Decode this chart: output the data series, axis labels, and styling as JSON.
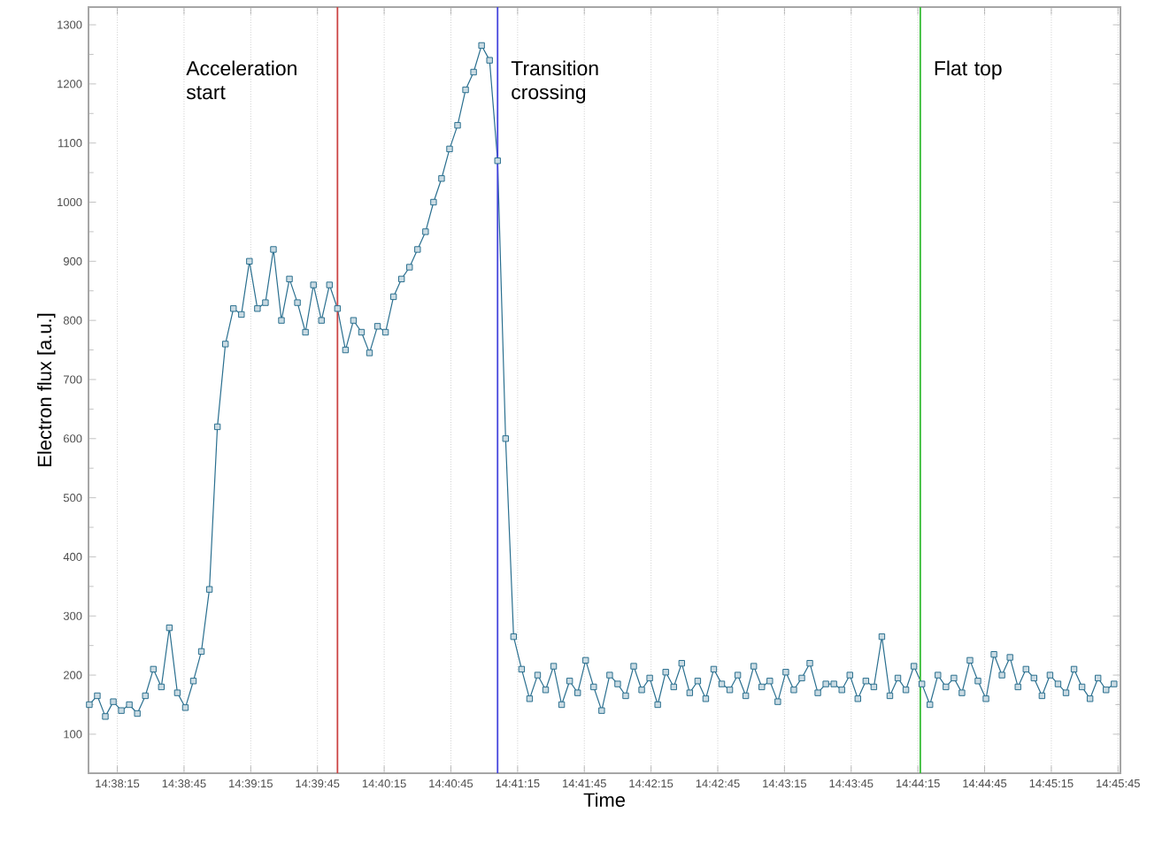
{
  "chart_data": {
    "type": "line",
    "xlabel": "Time",
    "ylabel": "Electron flux [a.u.]",
    "xlim": [
      14.6339,
      14.7628
    ],
    "ylim": [
      34,
      1330
    ],
    "xticks": [
      {
        "value": 14.6375,
        "label": "14:38:15"
      },
      {
        "value": 14.645833,
        "label": "14:38:45"
      },
      {
        "value": 14.654167,
        "label": "14:39:15"
      },
      {
        "value": 14.6625,
        "label": "14:39:45"
      },
      {
        "value": 14.670833,
        "label": "14:40:15"
      },
      {
        "value": 14.679167,
        "label": "14:40:45"
      },
      {
        "value": 14.6875,
        "label": "14:41:15"
      },
      {
        "value": 14.695833,
        "label": "14:41:45"
      },
      {
        "value": 14.704167,
        "label": "14:42:15"
      },
      {
        "value": 14.7125,
        "label": "14:42:45"
      },
      {
        "value": 14.720833,
        "label": "14:43:15"
      },
      {
        "value": 14.729167,
        "label": "14:43:45"
      },
      {
        "value": 14.7375,
        "label": "14:44:15"
      },
      {
        "value": 14.745833,
        "label": "14:44:45"
      },
      {
        "value": 14.754167,
        "label": "14:45:15"
      },
      {
        "value": 14.7625,
        "label": "14:45:45"
      }
    ],
    "yticks": [
      100,
      200,
      300,
      400,
      500,
      600,
      700,
      800,
      900,
      1000,
      1100,
      1200,
      1300
    ],
    "grid": "x",
    "marker": "square",
    "line_style": "solid",
    "x": [
      14.634,
      14.635,
      14.636,
      14.637,
      14.638,
      14.639,
      14.64,
      14.641,
      14.642,
      14.643,
      14.644,
      14.645,
      14.646,
      14.647,
      14.648,
      14.649,
      14.65,
      14.651,
      14.652,
      14.653,
      14.654,
      14.655,
      14.656,
      14.657,
      14.658,
      14.659,
      14.66,
      14.661,
      14.662,
      14.663,
      14.664,
      14.665,
      14.666,
      14.667,
      14.668,
      14.669,
      14.67,
      14.671,
      14.672,
      14.673,
      14.674,
      14.675,
      14.676,
      14.677,
      14.678,
      14.679,
      14.68,
      14.681,
      14.682,
      14.683,
      14.684,
      14.685,
      14.686,
      14.687,
      14.688,
      14.689,
      14.69,
      14.691,
      14.692,
      14.693,
      14.694,
      14.695,
      14.696,
      14.697,
      14.698,
      14.699,
      14.7,
      14.701,
      14.702,
      14.703,
      14.704,
      14.705,
      14.706,
      14.707,
      14.708,
      14.709,
      14.71,
      14.711,
      14.712,
      14.713,
      14.714,
      14.715,
      14.716,
      14.717,
      14.718,
      14.719,
      14.72,
      14.721,
      14.722,
      14.723,
      14.724,
      14.725,
      14.726,
      14.727,
      14.728,
      14.729,
      14.73,
      14.731,
      14.732,
      14.733,
      14.734,
      14.735,
      14.736,
      14.737,
      14.738,
      14.739,
      14.74,
      14.741,
      14.742,
      14.743,
      14.744,
      14.745,
      14.746,
      14.747,
      14.748,
      14.749,
      14.75,
      14.751,
      14.752,
      14.753,
      14.754,
      14.755,
      14.756,
      14.757,
      14.758,
      14.759,
      14.76,
      14.761,
      14.762
    ],
    "series": [
      {
        "color": "#2a6f8f",
        "values": [
          150,
          165,
          130,
          155,
          140,
          150,
          135,
          165,
          210,
          180,
          280,
          170,
          145,
          190,
          240,
          345,
          620,
          760,
          820,
          810,
          900,
          820,
          830,
          920,
          800,
          870,
          830,
          780,
          860,
          800,
          860,
          820,
          750,
          800,
          780,
          745,
          790,
          780,
          840,
          870,
          890,
          920,
          950,
          1000,
          1040,
          1090,
          1130,
          1190,
          1220,
          1265,
          1240,
          1070,
          600,
          265,
          210,
          160,
          200,
          175,
          215,
          150,
          190,
          170,
          225,
          180,
          140,
          200,
          185,
          165,
          215,
          175,
          195,
          150,
          205,
          180,
          220,
          170,
          190,
          160,
          210,
          185,
          175,
          200,
          165,
          215,
          180,
          190,
          155,
          205,
          175,
          195,
          220,
          170,
          185,
          185,
          175,
          200,
          160,
          190,
          180,
          265,
          165,
          195,
          175,
          215,
          185,
          150,
          200,
          180,
          195,
          170,
          225,
          190,
          160,
          235,
          200,
          230,
          180,
          210,
          195,
          165,
          200,
          185,
          170,
          210,
          180,
          160,
          195,
          175,
          185
        ]
      }
    ],
    "ref_lines": [
      {
        "axis": "x",
        "value": 14.665,
        "label": "Acceleration start",
        "color": "#cc4444"
      },
      {
        "axis": "x",
        "value": 14.685,
        "label": "Transition crossing",
        "color": "#4444dd"
      },
      {
        "axis": "x",
        "value": 14.7378,
        "label": "Flat top",
        "color": "#33bb33"
      }
    ]
  }
}
